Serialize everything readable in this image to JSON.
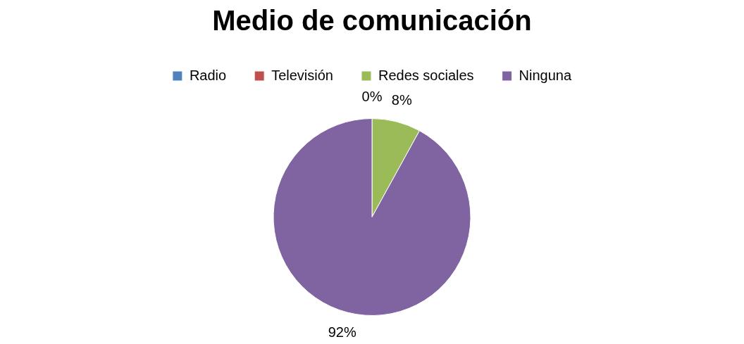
{
  "chart_data": {
    "type": "pie",
    "title": "Medio de comunicación",
    "categories": [
      "Radio",
      "Televisión",
      "Redes sociales",
      "Ninguna"
    ],
    "values": [
      0,
      0,
      8,
      92
    ],
    "colors": [
      "#4f81bd",
      "#c0504d",
      "#9bbb59",
      "#8064a2"
    ],
    "value_labels": [
      "0%",
      null,
      "8%",
      "92%"
    ],
    "legend": "top"
  }
}
